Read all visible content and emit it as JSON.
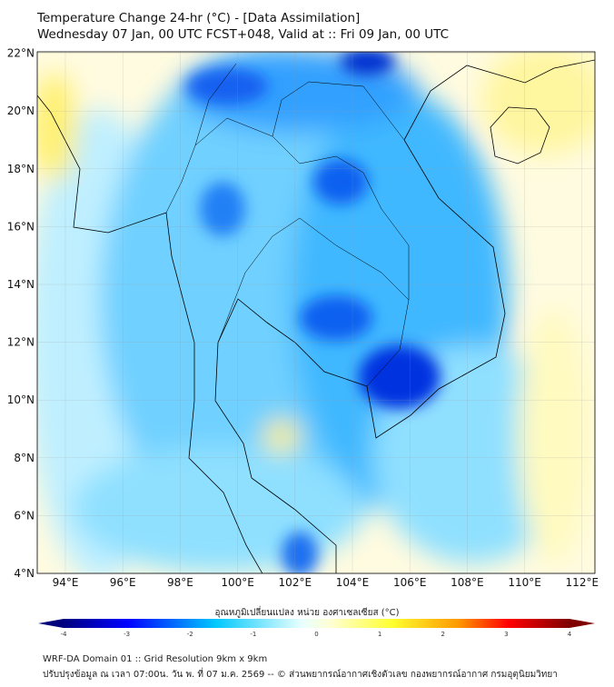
{
  "title": {
    "line1": "Temperature Change 24-hr (°C) - [Data Assimilation]",
    "line2": "Wednesday 07 Jan, 00 UTC FCST+048, Valid at :: Fri 09 Jan, 00 UTC"
  },
  "map": {
    "lon_range": [
      93,
      112.5
    ],
    "lat_range": [
      4,
      22.2
    ],
    "lon_ticks": [
      "94°E",
      "96°E",
      "98°E",
      "100°E",
      "102°E",
      "104°E",
      "106°E",
      "108°E",
      "110°E",
      "112°E"
    ],
    "lat_ticks": [
      "4°N",
      "6°N",
      "8°N",
      "10°N",
      "12°N",
      "14°N",
      "16°N",
      "18°N",
      "20°N",
      "22°N"
    ]
  },
  "colorbar": {
    "label": "อุณหภูมิเปลี่ยนแปลง หน่วย องศาเซลเซียส (°C)",
    "ticks": [
      "-4",
      "-3",
      "-2",
      "-1",
      "0",
      "1",
      "2",
      "3",
      "4"
    ],
    "range": [
      -4,
      4
    ],
    "colors": [
      "#00007f",
      "#0000ff",
      "#00c8ff",
      "#e8ffff",
      "#ffffd0",
      "#ffff30",
      "#ff9900",
      "#ff0000",
      "#7f0000"
    ]
  },
  "footer": {
    "line1": "WRF-DA Domain 01 :: Grid Resolution 9km x 9km",
    "line2": "ปรับปรุงข้อมูล ณ เวลา 07:00น. วัน พ. ที่ 07 ม.ค. 2569 -- © ส่วนพยากรณ์อากาศเชิงตัวเลข กองพยากรณ์อากาศ กรมอุตุนิยมวิทยา"
  }
}
